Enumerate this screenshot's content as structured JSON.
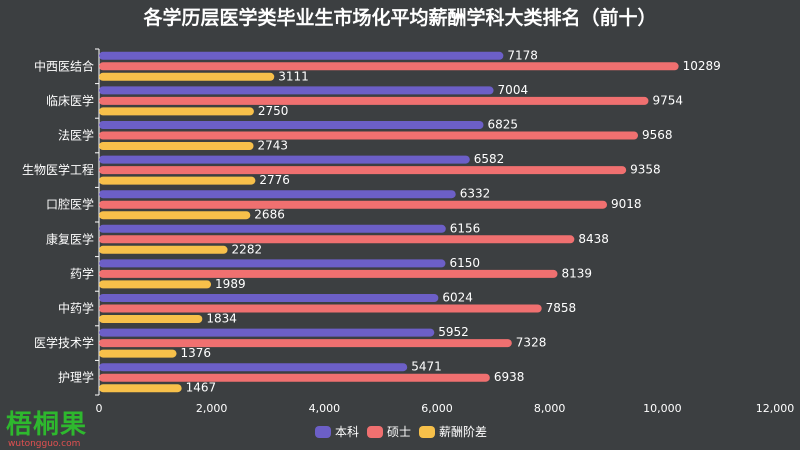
{
  "chart_data": {
    "type": "bar",
    "orientation": "horizontal",
    "title": "各学历层医学类毕业生市场化平均薪酬学科大类排名（前十）",
    "categories": [
      "中西医结合",
      "临床医学",
      "法医学",
      "生物医学工程",
      "口腔医学",
      "康复医学",
      "药学",
      "中药学",
      "医学技术学",
      "护理学"
    ],
    "series": [
      {
        "name": "本科",
        "color": "#6c5fc7",
        "values": [
          7178,
          7004,
          6825,
          6582,
          6332,
          6156,
          6150,
          6024,
          5952,
          5471
        ]
      },
      {
        "name": "硕士",
        "color": "#f07070",
        "values": [
          10289,
          9754,
          9568,
          9358,
          9018,
          8438,
          8139,
          7858,
          7328,
          6938
        ]
      },
      {
        "name": "薪酬阶差",
        "color": "#f7c04a",
        "values": [
          3111,
          2750,
          2743,
          2776,
          2686,
          2282,
          1989,
          1834,
          1376,
          1467
        ]
      }
    ],
    "xlim": [
      0,
      12000
    ],
    "xticks": [
      0,
      2000,
      4000,
      6000,
      8000,
      10000,
      12000
    ],
    "xtick_labels": [
      "0",
      "2,000",
      "4,000",
      "6,000",
      "8,000",
      "10,000",
      "12,000"
    ],
    "legend_position": "bottom",
    "grid": false
  },
  "watermark": {
    "main": "梧桐果",
    "sub": "wutongguo.com",
    "main_color": "#2eb82e",
    "sub_color": "#e05050"
  }
}
